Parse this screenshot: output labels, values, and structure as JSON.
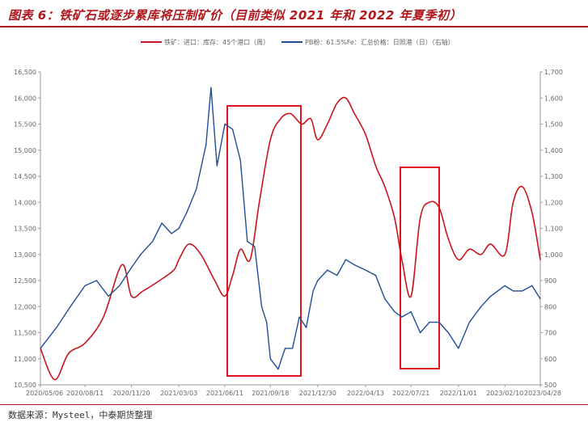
{
  "title": "图表 6：铁矿石或逐步累库将压制矿价（目前类似 2021 年和 2022 年夏季初）",
  "source": "数据来源：Mysteel，中泰期货整理",
  "colors": {
    "accent": "#b0161c",
    "red_series": "#c8141c",
    "blue_series": "#1f4e96",
    "box": "#e0141c",
    "axis": "#9a9a9a"
  },
  "chart_data": {
    "type": "line",
    "x_tick_labels": [
      "2020/05/06",
      "2020/08/11",
      "2020/11/20",
      "2021/03/03",
      "2021/06/11",
      "2021/09/18",
      "2021/12/30",
      "2022/04/13",
      "2022/07/21",
      "2022/11/01",
      "2023/02/10",
      "2023/04/28"
    ],
    "y_left": {
      "ylim": [
        10500,
        16500
      ],
      "ticks": [
        "10,500",
        "11,000",
        "11,500",
        "12,000",
        "12,500",
        "13,000",
        "13,500",
        "14,000",
        "14,500",
        "15,000",
        "15,500",
        "16,000",
        "16,500"
      ]
    },
    "y_right": {
      "ylim": [
        500,
        1700
      ],
      "ticks": [
        "500",
        "600",
        "700",
        "800",
        "900",
        "1,000",
        "1,100",
        "1,200",
        "1,300",
        "1,400",
        "1,500",
        "1,600",
        "1,700"
      ]
    },
    "series": [
      {
        "name": "铁矿：进口：库存：45个港口（周）",
        "axis": "left",
        "x": [
          "2020/05/06",
          "2020/06/06",
          "2020/07/06",
          "2020/08/11",
          "2020/09/20",
          "2020/10/30",
          "2020/11/20",
          "2020/12/15",
          "2021/01/20",
          "2021/02/20",
          "2021/03/03",
          "2021/03/25",
          "2021/04/20",
          "2021/05/20",
          "2021/06/11",
          "2021/06/28",
          "2021/07/15",
          "2021/08/05",
          "2021/08/25",
          "2021/09/18",
          "2021/10/10",
          "2021/11/01",
          "2021/11/25",
          "2021/12/15",
          "2021/12/30",
          "2022/01/20",
          "2022/02/10",
          "2022/03/01",
          "2022/03/20",
          "2022/04/13",
          "2022/05/05",
          "2022/05/25",
          "2022/06/15",
          "2022/07/01",
          "2022/07/21",
          "2022/08/10",
          "2022/08/30",
          "2022/09/20",
          "2022/10/10",
          "2022/11/01",
          "2022/11/25",
          "2022/12/20",
          "2023/01/10",
          "2023/02/10",
          "2023/02/28",
          "2023/03/20",
          "2023/04/10",
          "2023/04/28"
        ],
        "values": [
          11200,
          10600,
          11100,
          11300,
          11800,
          12800,
          12200,
          12300,
          12500,
          12700,
          12900,
          13200,
          13000,
          12500,
          12200,
          12600,
          13100,
          12900,
          14000,
          15200,
          15600,
          15700,
          15500,
          15600,
          15200,
          15500,
          15900,
          16000,
          15700,
          15300,
          14700,
          14300,
          13700,
          12900,
          12200,
          13700,
          14000,
          13900,
          13300,
          12900,
          13100,
          13000,
          13200,
          13000,
          14000,
          14300,
          13800,
          12900
        ]
      },
      {
        "name": "PB粉：61.5%Fe：汇总价格：日照港（日）（右轴）",
        "axis": "right",
        "x": [
          "2020/05/06",
          "2020/06/10",
          "2020/07/10",
          "2020/08/11",
          "2020/09/05",
          "2020/10/01",
          "2020/10/25",
          "2020/11/20",
          "2020/12/10",
          "2021/01/05",
          "2021/01/25",
          "2021/02/15",
          "2021/03/03",
          "2021/03/20",
          "2021/04/10",
          "2021/05/01",
          "2021/05/12",
          "2021/05/25",
          "2021/06/11",
          "2021/06/28",
          "2021/07/15",
          "2021/07/30",
          "2021/08/15",
          "2021/08/30",
          "2021/09/10",
          "2021/09/18",
          "2021/10/05",
          "2021/10/20",
          "2021/11/05",
          "2021/11/20",
          "2021/12/05",
          "2021/12/20",
          "2021/12/30",
          "2022/01/20",
          "2022/02/10",
          "2022/03/01",
          "2022/03/20",
          "2022/04/13",
          "2022/05/05",
          "2022/05/25",
          "2022/06/15",
          "2022/07/01",
          "2022/07/21",
          "2022/08/10",
          "2022/08/30",
          "2022/09/20",
          "2022/10/10",
          "2022/11/01",
          "2022/11/25",
          "2022/12/20",
          "2023/01/10",
          "2023/02/10",
          "2023/02/28",
          "2023/03/20",
          "2023/04/10",
          "2023/04/28"
        ],
        "values": [
          640,
          720,
          800,
          880,
          900,
          840,
          880,
          950,
          1000,
          1050,
          1120,
          1080,
          1100,
          1160,
          1250,
          1420,
          1640,
          1340,
          1500,
          1480,
          1360,
          1050,
          1030,
          800,
          740,
          600,
          560,
          640,
          640,
          760,
          720,
          860,
          900,
          940,
          920,
          980,
          960,
          940,
          920,
          830,
          780,
          760,
          780,
          700,
          740,
          740,
          700,
          640,
          740,
          800,
          840,
          880,
          860,
          860,
          880,
          830
        ]
      }
    ],
    "annotation_boxes": 2,
    "legend": "top",
    "grid": false
  }
}
